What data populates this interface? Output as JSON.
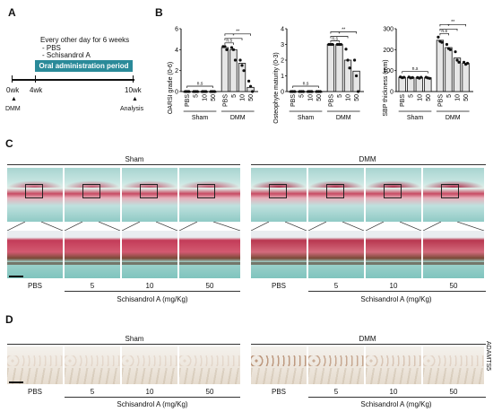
{
  "panels": {
    "A": "A",
    "B": "B",
    "C": "C",
    "D": "D"
  },
  "panelA": {
    "schedule_title": "Every other day for 6 weeks",
    "treatments": [
      "- PBS",
      "- Schisandrol A"
    ],
    "period_label": "Oral administration period",
    "time_points": [
      "0wk",
      "4wk",
      "10wk"
    ],
    "events": [
      "DMM",
      "Analysis"
    ],
    "period_color": "#2a8a99"
  },
  "chart_data": [
    {
      "type": "bar",
      "ylabel": "OARSI grade (0-6)",
      "ylim": [
        0,
        6
      ],
      "yticks": [
        "0",
        "2",
        "4",
        "6"
      ],
      "categories": [
        "PBS",
        "5",
        "10",
        "50",
        "PBS",
        "5",
        "10",
        "50"
      ],
      "groups": [
        "Sham",
        "DMM"
      ],
      "values": [
        0,
        0,
        0,
        0,
        4.2,
        4.0,
        2.7,
        0.4
      ],
      "points": [
        [
          0,
          0,
          0
        ],
        [
          0,
          0,
          0
        ],
        [
          0,
          0,
          0
        ],
        [
          0,
          0,
          0
        ],
        [
          4.3,
          4.3,
          4.0
        ],
        [
          4.2,
          4.0,
          3.0
        ],
        [
          3.0,
          2.5,
          2.0
        ],
        [
          1.0,
          0.5,
          0.0
        ]
      ],
      "ns_labels": [
        "n.s",
        "n.s",
        "*",
        "**"
      ]
    },
    {
      "type": "bar",
      "ylabel": "Osteophyte maturity (0-3)",
      "ylim": [
        0,
        4
      ],
      "yticks": [
        "0",
        "1",
        "2",
        "3",
        "4"
      ],
      "categories": [
        "PBS",
        "5",
        "10",
        "50",
        "PBS",
        "5",
        "10",
        "50"
      ],
      "groups": [
        "Sham",
        "DMM"
      ],
      "values": [
        0,
        0,
        0,
        0,
        3.0,
        3.0,
        2.0,
        1.3
      ],
      "points": [
        [
          0,
          0,
          0
        ],
        [
          0,
          0,
          0
        ],
        [
          0,
          0,
          0
        ],
        [
          0,
          0,
          0
        ],
        [
          3,
          3,
          3
        ],
        [
          3,
          3,
          3
        ],
        [
          2.7,
          2,
          1.5
        ],
        [
          2,
          1,
          0
        ]
      ],
      "ns_labels": [
        "n.s",
        "n.s",
        "*",
        "**"
      ]
    },
    {
      "type": "bar",
      "ylabel": "SBP thickness (mm)",
      "ylim": [
        0,
        300
      ],
      "yticks": [
        "0",
        "100",
        "200",
        "300"
      ],
      "categories": [
        "PBS",
        "5",
        "10",
        "50",
        "PBS",
        "5",
        "10",
        "50"
      ],
      "groups": [
        "Sham",
        "DMM"
      ],
      "values": [
        68,
        67,
        66,
        66,
        245,
        210,
        160,
        135
      ],
      "points": [
        [
          70,
          66,
          68
        ],
        [
          69,
          65,
          67
        ],
        [
          67,
          64,
          68
        ],
        [
          68,
          65,
          63
        ],
        [
          260,
          240,
          235
        ],
        [
          225,
          205,
          200
        ],
        [
          190,
          150,
          140
        ],
        [
          140,
          130,
          135
        ]
      ],
      "ns_labels": [
        "n.s",
        "n.s",
        "*",
        "**"
      ]
    }
  ],
  "panelC": {
    "group_titles": [
      "Sham",
      "DMM"
    ],
    "dose_labels": [
      "PBS",
      "5",
      "10",
      "50"
    ],
    "axis_title": "Schisandrol A (mg/Kg)"
  },
  "panelD": {
    "group_titles": [
      "Sham",
      "DMM"
    ],
    "dose_labels": [
      "PBS",
      "5",
      "10",
      "50"
    ],
    "axis_title": "Schisandrol A (mg/Kg)",
    "stain_label": "ADAMTS5"
  }
}
